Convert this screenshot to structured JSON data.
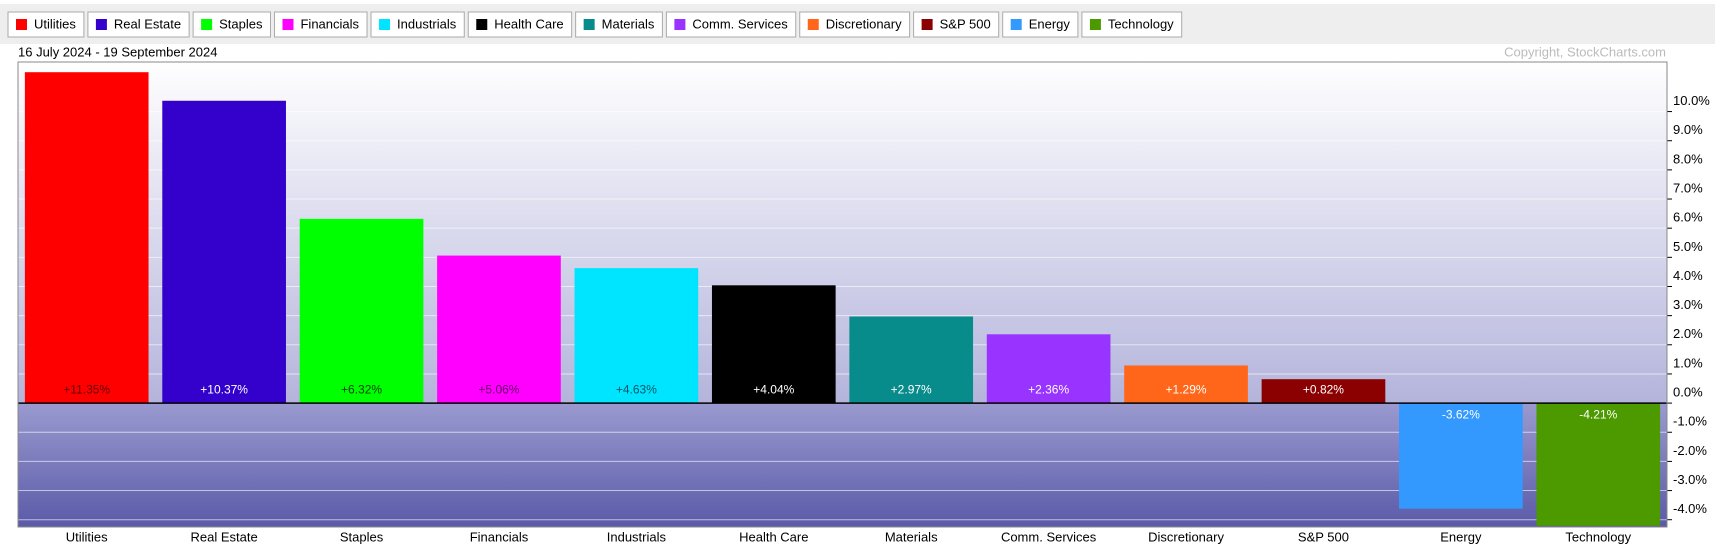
{
  "chart_data": {
    "type": "bar",
    "subtitle": "16 July 2024 - 19 September 2024",
    "annotation": "Copyright, StockCharts.com",
    "categories": [
      "Utilities",
      "Real Estate",
      "Staples",
      "Financials",
      "Industrials",
      "Health Care",
      "Materials",
      "Comm. Services",
      "Discretionary",
      "S&P 500",
      "Energy",
      "Technology"
    ],
    "values": [
      11.35,
      10.37,
      6.32,
      5.06,
      4.63,
      4.04,
      2.97,
      2.36,
      1.29,
      0.82,
      -3.62,
      -4.21
    ],
    "value_labels": [
      "+11.35%",
      "+10.37%",
      "+6.32%",
      "+5.06%",
      "+4.63%",
      "+4.04%",
      "+2.97%",
      "+2.36%",
      "+1.29%",
      "+0.82%",
      "-3.62%",
      "-4.21%"
    ],
    "colors": [
      "#ff0000",
      "#3300cc",
      "#00ff00",
      "#ff00ff",
      "#00e5ff",
      "#000000",
      "#078b8b",
      "#9933ff",
      "#ff6619",
      "#8b0000",
      "#3399ff",
      "#4c9900"
    ],
    "value_label_colors": [
      "#660000",
      "#ffffff",
      "#004400",
      "#660066",
      "#005566",
      "#ffffff",
      "#ffffff",
      "#ffffff",
      "#ffffff",
      "#ffffff",
      "#ffffff",
      "#ffffff"
    ],
    "ylim": [
      -4.25,
      11.7
    ],
    "yticks": [
      {
        "value": -4,
        "label": "-4.0%"
      },
      {
        "value": -3,
        "label": "-3.0%"
      },
      {
        "value": -2,
        "label": "-2.0%"
      },
      {
        "value": -1,
        "label": "-1.0%"
      },
      {
        "value": 0,
        "label": "0.0%"
      },
      {
        "value": 1,
        "label": "1.0%"
      },
      {
        "value": 2,
        "label": "2.0%"
      },
      {
        "value": 3,
        "label": "3.0%"
      },
      {
        "value": 4,
        "label": "4.0%"
      },
      {
        "value": 5,
        "label": "5.0%"
      },
      {
        "value": 6,
        "label": "6.0%"
      },
      {
        "value": 7,
        "label": "7.0%"
      },
      {
        "value": 8,
        "label": "8.0%"
      },
      {
        "value": 9,
        "label": "9.0%"
      },
      {
        "value": 10,
        "label": "10.0%"
      }
    ],
    "grid": true
  }
}
